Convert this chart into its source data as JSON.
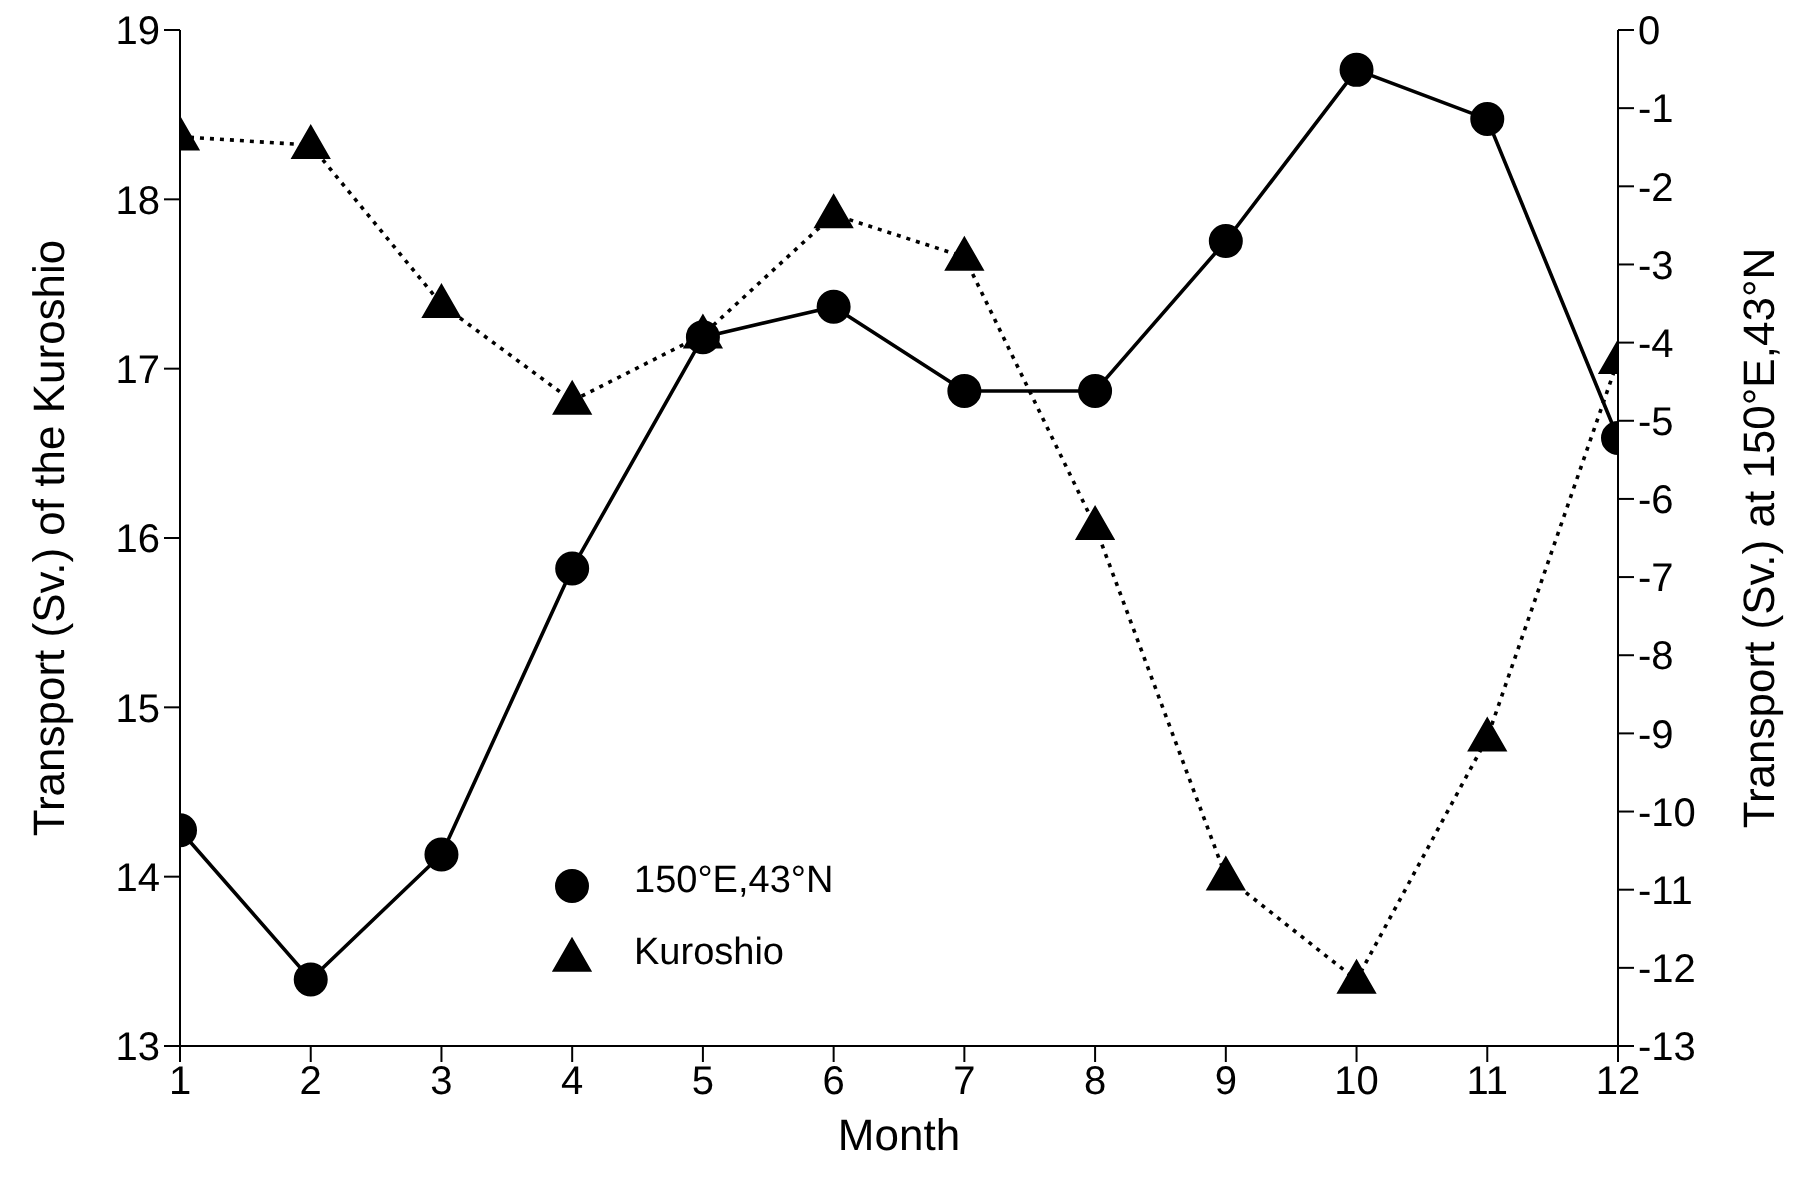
{
  "chart_data": {
    "type": "line",
    "xlabel": "Month",
    "ylabel": "Transport (Sv.) of the Kuroshio",
    "y2label": "Transport (Sv.) at 150°E,43°N",
    "x": [
      1,
      2,
      3,
      4,
      5,
      6,
      7,
      8,
      9,
      10,
      11,
      12
    ],
    "xlim": [
      1,
      12
    ],
    "xticks": [
      1,
      2,
      3,
      4,
      5,
      6,
      7,
      8,
      9,
      10,
      11,
      12
    ],
    "ylim": [
      13,
      19
    ],
    "yticks": [
      13,
      14,
      15,
      16,
      17,
      18,
      19
    ],
    "y2lim": [
      -13,
      0
    ],
    "y2ticks": [
      -13,
      -12,
      -11,
      -10,
      -9,
      -8,
      -7,
      -6,
      -5,
      -4,
      -3,
      -2,
      -1,
      0
    ],
    "grid": false,
    "legend": "bottom left",
    "series": [
      {
        "name": "150°E,43°N",
        "color": "#000000",
        "axis": "y2",
        "marker": "circle",
        "line_style": "solid",
        "values": [
          -10.24,
          -12.15,
          -10.55,
          -6.89,
          -3.93,
          -3.54,
          -4.62,
          -4.62,
          -2.7,
          -0.51,
          -1.14,
          -5.22
        ]
      },
      {
        "name": "Kuroshio",
        "color": "#000000",
        "axis": "y",
        "marker": "triangle",
        "line_style": "dotted",
        "values": [
          18.37,
          18.32,
          17.38,
          16.81,
          17.2,
          17.91,
          17.66,
          16.07,
          14.0,
          13.39,
          14.82,
          17.05
        ]
      }
    ]
  }
}
